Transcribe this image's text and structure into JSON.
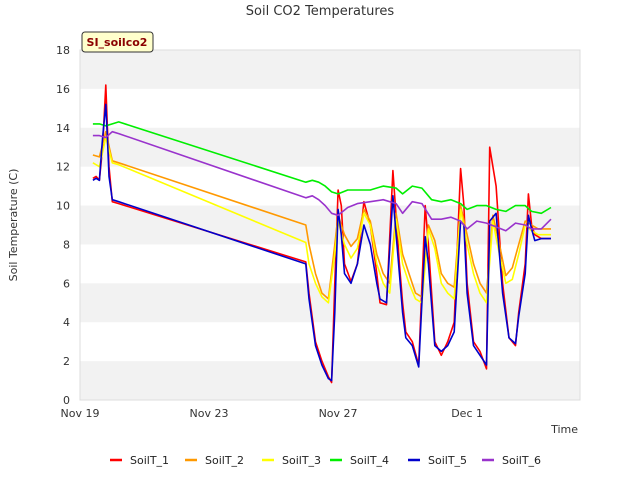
{
  "chart_data": {
    "type": "line",
    "title": "Soil CO2 Temperatures",
    "site_label": "SI_soilco2",
    "xlabel": "Time",
    "ylabel": "Soil Temperature (C)",
    "ylim": [
      0,
      18
    ],
    "yticks": [
      0,
      2,
      4,
      6,
      8,
      10,
      12,
      14,
      16,
      18
    ],
    "xlim": [
      0,
      15.5
    ],
    "xticks": [
      {
        "x": 0,
        "label": "Nov 19"
      },
      {
        "x": 4,
        "label": "Nov 23"
      },
      {
        "x": 8,
        "label": "Nov 27"
      },
      {
        "x": 12,
        "label": "Dec 1"
      }
    ],
    "x_unit": "days since Nov 19",
    "grid": "horizontal alternating bands",
    "legend_position": "bottom",
    "series": [
      {
        "name": "SoilT_1",
        "color": "#ff0000",
        "x": [
          0.4,
          0.5,
          0.6,
          0.7,
          0.8,
          0.85,
          0.9,
          1.0,
          1.2,
          7.0,
          7.1,
          7.3,
          7.5,
          7.7,
          7.8,
          7.9,
          8.0,
          8.1,
          8.2,
          8.4,
          8.6,
          8.8,
          9.0,
          9.2,
          9.3,
          9.5,
          9.7,
          9.9,
          10.0,
          10.1,
          10.3,
          10.5,
          10.7,
          10.8,
          11.0,
          11.2,
          11.4,
          11.6,
          11.8,
          11.9,
          12.0,
          12.2,
          12.4,
          12.6,
          12.7,
          12.9,
          13.1,
          13.3,
          13.5,
          13.6,
          13.8,
          13.9,
          14.0,
          14.1,
          14.3,
          14.5,
          14.6
        ],
        "y": [
          11.4,
          11.5,
          11.3,
          13.0,
          16.2,
          14.0,
          12.0,
          10.2,
          10.1,
          7.1,
          5.5,
          3.0,
          2.0,
          1.2,
          0.9,
          6.0,
          10.8,
          10.0,
          7.0,
          6.1,
          7.0,
          10.2,
          9.0,
          6.5,
          5.0,
          4.9,
          11.8,
          7.0,
          5.0,
          3.5,
          3.0,
          1.8,
          10.0,
          8.0,
          3.0,
          2.3,
          3.0,
          4.0,
          11.9,
          10.0,
          6.0,
          3.0,
          2.5,
          1.6,
          13.0,
          11.0,
          6.0,
          3.2,
          2.8,
          4.5,
          7.0,
          10.6,
          9.0,
          8.5,
          8.3,
          8.3,
          8.3
        ]
      },
      {
        "name": "SoilT_2",
        "color": "#ff9900",
        "x": [
          0.4,
          0.6,
          0.8,
          1.0,
          1.2,
          7.0,
          7.1,
          7.3,
          7.5,
          7.7,
          7.9,
          8.0,
          8.2,
          8.4,
          8.6,
          8.8,
          9.0,
          9.2,
          9.4,
          9.6,
          9.8,
          10.0,
          10.2,
          10.4,
          10.6,
          10.8,
          11.0,
          11.2,
          11.4,
          11.6,
          11.8,
          12.0,
          12.2,
          12.4,
          12.6,
          12.8,
          13.0,
          13.2,
          13.4,
          13.6,
          13.8,
          14.0,
          14.2,
          14.5,
          14.6
        ],
        "y": [
          12.6,
          12.5,
          13.8,
          12.3,
          12.2,
          9.0,
          8.0,
          6.5,
          5.5,
          5.2,
          8.0,
          9.5,
          8.5,
          7.9,
          8.3,
          9.8,
          9.2,
          7.5,
          6.5,
          6.0,
          9.6,
          7.5,
          6.5,
          5.5,
          5.3,
          9.0,
          8.2,
          6.5,
          6.0,
          5.8,
          10.0,
          8.5,
          7.0,
          6.0,
          5.5,
          9.5,
          8.0,
          6.4,
          6.8,
          8.0,
          9.2,
          9.0,
          8.8,
          8.8,
          8.8
        ]
      },
      {
        "name": "SoilT_3",
        "color": "#ffff00",
        "x": [
          0.4,
          0.6,
          0.8,
          1.0,
          1.2,
          7.0,
          7.1,
          7.3,
          7.5,
          7.7,
          7.9,
          8.0,
          8.2,
          8.4,
          8.6,
          8.8,
          9.0,
          9.2,
          9.4,
          9.6,
          9.8,
          10.0,
          10.2,
          10.4,
          10.6,
          10.8,
          11.0,
          11.2,
          11.4,
          11.6,
          11.8,
          12.0,
          12.2,
          12.4,
          12.6,
          12.8,
          13.0,
          13.2,
          13.4,
          13.6,
          13.8,
          14.0,
          14.2,
          14.5,
          14.6
        ],
        "y": [
          12.2,
          12.0,
          13.5,
          12.2,
          12.1,
          8.1,
          7.0,
          6.0,
          5.3,
          5.0,
          7.5,
          9.2,
          8.0,
          7.3,
          7.8,
          9.6,
          9.0,
          7.0,
          6.0,
          5.5,
          9.3,
          7.0,
          6.0,
          5.2,
          5.0,
          8.8,
          7.8,
          6.0,
          5.5,
          5.2,
          9.8,
          8.0,
          6.5,
          5.5,
          5.0,
          9.2,
          7.5,
          6.0,
          6.2,
          7.5,
          9.0,
          8.7,
          8.5,
          8.5,
          8.5
        ]
      },
      {
        "name": "SoilT_4",
        "color": "#00ee00",
        "x": [
          0.4,
          0.6,
          0.8,
          1.0,
          1.2,
          7.0,
          7.2,
          7.4,
          7.6,
          7.8,
          8.0,
          8.3,
          8.6,
          9.0,
          9.4,
          9.8,
          10.0,
          10.3,
          10.6,
          10.9,
          11.2,
          11.5,
          11.8,
          12.0,
          12.3,
          12.6,
          12.9,
          13.2,
          13.5,
          13.8,
          14.0,
          14.3,
          14.6
        ],
        "y": [
          14.2,
          14.2,
          14.1,
          14.2,
          14.3,
          11.2,
          11.3,
          11.2,
          11.0,
          10.7,
          10.6,
          10.8,
          10.8,
          10.8,
          11.0,
          10.9,
          10.6,
          11.0,
          10.9,
          10.3,
          10.2,
          10.3,
          10.1,
          9.8,
          10.0,
          10.0,
          9.8,
          9.7,
          10.0,
          10.0,
          9.7,
          9.6,
          9.9
        ]
      },
      {
        "name": "SoilT_5",
        "color": "#0000cc",
        "x": [
          0.4,
          0.5,
          0.6,
          0.7,
          0.8,
          0.85,
          0.9,
          1.0,
          1.2,
          7.0,
          7.1,
          7.3,
          7.5,
          7.7,
          7.8,
          7.9,
          8.0,
          8.1,
          8.2,
          8.4,
          8.6,
          8.8,
          9.0,
          9.2,
          9.3,
          9.5,
          9.7,
          9.9,
          10.0,
          10.1,
          10.3,
          10.5,
          10.7,
          10.8,
          11.0,
          11.2,
          11.4,
          11.6,
          11.8,
          11.9,
          12.0,
          12.2,
          12.4,
          12.6,
          12.7,
          12.9,
          13.1,
          13.3,
          13.5,
          13.6,
          13.8,
          13.9,
          14.0,
          14.1,
          14.3,
          14.5,
          14.6
        ],
        "y": [
          11.3,
          11.4,
          11.3,
          13.5,
          15.2,
          13.5,
          11.5,
          10.3,
          10.2,
          7.0,
          5.2,
          2.8,
          1.8,
          1.1,
          1.0,
          4.5,
          9.8,
          8.5,
          6.5,
          6.0,
          7.0,
          9.0,
          8.0,
          6.0,
          5.2,
          5.0,
          10.5,
          6.5,
          4.5,
          3.2,
          2.8,
          1.7,
          8.4,
          7.0,
          2.8,
          2.5,
          2.8,
          3.5,
          9.2,
          9.0,
          5.5,
          2.8,
          2.3,
          1.8,
          9.2,
          9.6,
          5.5,
          3.2,
          2.9,
          4.3,
          6.5,
          9.5,
          8.8,
          8.2,
          8.3,
          8.3,
          8.3
        ]
      },
      {
        "name": "SoilT_6",
        "color": "#9933cc",
        "x": [
          0.4,
          0.6,
          0.8,
          1.0,
          1.2,
          7.0,
          7.2,
          7.4,
          7.6,
          7.8,
          8.0,
          8.3,
          8.6,
          9.0,
          9.4,
          9.8,
          10.0,
          10.3,
          10.6,
          10.9,
          11.2,
          11.5,
          11.8,
          12.0,
          12.3,
          12.6,
          12.9,
          13.2,
          13.5,
          13.8,
          14.0,
          14.3,
          14.6
        ],
        "y": [
          13.6,
          13.6,
          13.5,
          13.8,
          13.7,
          10.4,
          10.5,
          10.3,
          10.0,
          9.6,
          9.5,
          9.9,
          10.1,
          10.2,
          10.3,
          10.1,
          9.6,
          10.2,
          10.1,
          9.3,
          9.3,
          9.4,
          9.2,
          8.8,
          9.2,
          9.1,
          8.9,
          8.7,
          9.1,
          9.0,
          8.8,
          8.8,
          9.3
        ]
      }
    ]
  }
}
